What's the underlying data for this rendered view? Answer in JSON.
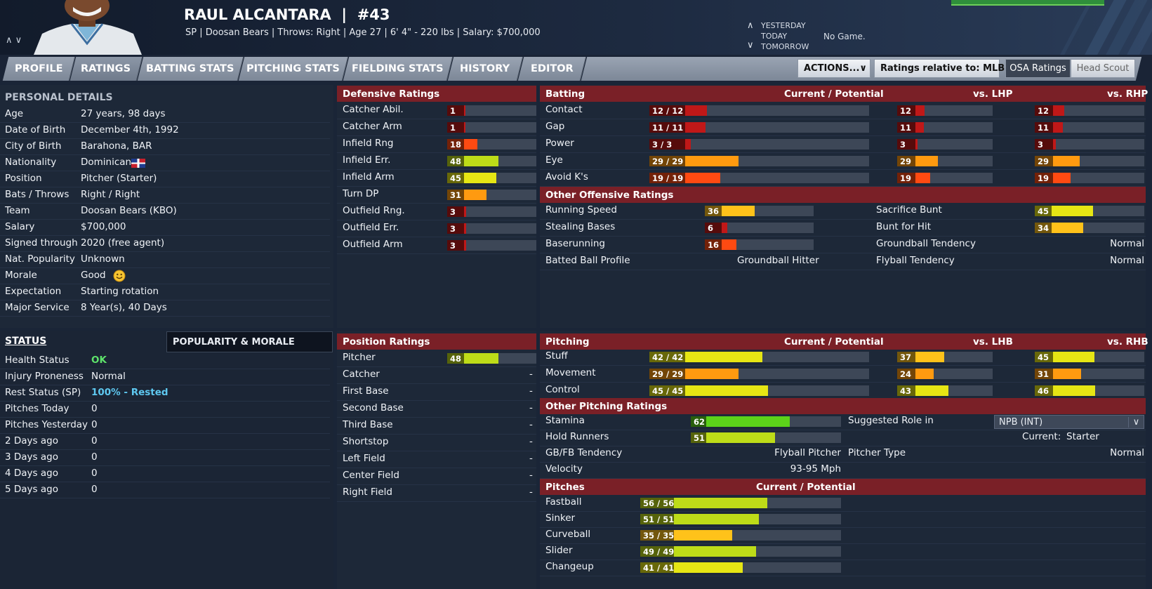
{
  "player": {
    "name": "RAUL ALCANTARA",
    "number": "#43",
    "info": "SP | Doosan Bears  |  Throws: Right  |  Age 27  |  6' 4\" - 220 lbs  |  Salary: $700,000"
  },
  "schedule": {
    "yesterday": "YESTERDAY",
    "today": "TODAY",
    "tomorrow": "TOMORROW",
    "game": "No Game."
  },
  "tabs": [
    "PROFILE",
    "RATINGS",
    "BATTING STATS",
    "PITCHING STATS",
    "FIELDING STATS",
    "HISTORY",
    "EDITOR"
  ],
  "toolbar": {
    "actions": "ACTIONS...",
    "relative": "Ratings relative to: MLB",
    "osa": "OSA Ratings",
    "scout": "Head Scout"
  },
  "personal": {
    "title": "PERSONAL DETAILS",
    "rows": [
      {
        "label": "Age",
        "value": "27 years, 98 days"
      },
      {
        "label": "Date of Birth",
        "value": "December 4th, 1992"
      },
      {
        "label": "City of Birth",
        "value": "Barahona, BAR"
      },
      {
        "label": "Nationality",
        "value": "Dominican"
      },
      {
        "label": "Position",
        "value": "Pitcher (Starter)"
      },
      {
        "label": "Bats / Throws",
        "value": "Right / Right"
      },
      {
        "label": "Team",
        "value": "Doosan Bears (KBO)"
      },
      {
        "label": "Salary",
        "value": "$700,000"
      },
      {
        "label": "Signed through",
        "value": "2020 (free agent)"
      },
      {
        "label": "Nat. Popularity",
        "value": "Unknown"
      },
      {
        "label": "Morale",
        "value": "Good"
      },
      {
        "label": "Expectation",
        "value": "Starting rotation"
      },
      {
        "label": "Major Service",
        "value": "8 Year(s), 40 Days"
      }
    ]
  },
  "status": {
    "title": "STATUS",
    "popularity_tab": "POPULARITY & MORALE",
    "rows": [
      {
        "label": "Health Status",
        "value": "OK",
        "color": "#5ee36b"
      },
      {
        "label": "Injury Proneness",
        "value": "Normal",
        "color": "#f0f3f7"
      },
      {
        "label": "Rest Status (SP)",
        "value": "100% - Rested",
        "color": "#5ec8f0"
      },
      {
        "label": "Pitches Today",
        "value": "0",
        "color": "#f0f3f7"
      },
      {
        "label": "Pitches Yesterday",
        "value": "0",
        "color": "#f0f3f7"
      },
      {
        "label": "2 Days ago",
        "value": "0",
        "color": "#f0f3f7"
      },
      {
        "label": "3 Days ago",
        "value": "0",
        "color": "#f0f3f7"
      },
      {
        "label": "4 Days ago",
        "value": "0",
        "color": "#f0f3f7"
      },
      {
        "label": "5 Days ago",
        "value": "0",
        "color": "#f0f3f7"
      }
    ]
  },
  "defensive": {
    "title": "Defensive Ratings",
    "rows": [
      {
        "label": "Catcher Abil.",
        "value": 1
      },
      {
        "label": "Catcher Arm",
        "value": 1
      },
      {
        "label": "Infield Rng",
        "value": 18
      },
      {
        "label": "Infield Err.",
        "value": 48
      },
      {
        "label": "Infield Arm",
        "value": 45
      },
      {
        "label": "Turn DP",
        "value": 31
      },
      {
        "label": "Outfield Rng.",
        "value": 3
      },
      {
        "label": "Outfield Err.",
        "value": 3
      },
      {
        "label": "Outfield Arm",
        "value": 3
      }
    ]
  },
  "position_ratings": {
    "title": "Position Ratings",
    "rows": [
      {
        "label": "Pitcher",
        "value": 48
      },
      {
        "label": "Catcher",
        "value": "-"
      },
      {
        "label": "First Base",
        "value": "-"
      },
      {
        "label": "Second Base",
        "value": "-"
      },
      {
        "label": "Third Base",
        "value": "-"
      },
      {
        "label": "Shortstop",
        "value": "-"
      },
      {
        "label": "Left Field",
        "value": "-"
      },
      {
        "label": "Center Field",
        "value": "-"
      },
      {
        "label": "Right Field",
        "value": "-"
      }
    ]
  },
  "batting": {
    "title": "Batting",
    "col_current": "Current / Potential",
    "col_lhp": "vs. LHP",
    "col_rhp": "vs. RHP",
    "rows": [
      {
        "label": "Contact",
        "current": "12 / 12",
        "cv": 12,
        "lhp": 12,
        "rhp": 12
      },
      {
        "label": "Gap",
        "current": "11 / 11",
        "cv": 11,
        "lhp": 11,
        "rhp": 11
      },
      {
        "label": "Power",
        "current": "3 / 3",
        "cv": 3,
        "lhp": 3,
        "rhp": 3
      },
      {
        "label": "Eye",
        "current": "29 / 29",
        "cv": 29,
        "lhp": 29,
        "rhp": 29
      },
      {
        "label": "Avoid K's",
        "current": "19 / 19",
        "cv": 19,
        "lhp": 19,
        "rhp": 19
      }
    ]
  },
  "other_offensive": {
    "title": "Other Offensive Ratings",
    "left": [
      {
        "label": "Running Speed",
        "value": 36
      },
      {
        "label": "Stealing Bases",
        "value": 6
      },
      {
        "label": "Baserunning",
        "value": 16
      },
      {
        "label": "Batted Ball Profile",
        "value": "Groundball Hitter"
      }
    ],
    "right": [
      {
        "label": "Sacrifice Bunt",
        "value": 45
      },
      {
        "label": "Bunt for Hit",
        "value": 34
      },
      {
        "label": "Groundball Tendency",
        "value": "Normal"
      },
      {
        "label": "Flyball Tendency",
        "value": "Normal"
      }
    ]
  },
  "pitching": {
    "title": "Pitching",
    "col_current": "Current / Potential",
    "col_lhb": "vs. LHB",
    "col_rhb": "vs. RHB",
    "rows": [
      {
        "label": "Stuff",
        "current": "42 / 42",
        "cv": 42,
        "lhb": 37,
        "rhb": 45
      },
      {
        "label": "Movement",
        "current": "29 / 29",
        "cv": 29,
        "lhb": 24,
        "rhb": 31
      },
      {
        "label": "Control",
        "current": "45 / 45",
        "cv": 45,
        "lhb": 43,
        "rhb": 46
      }
    ]
  },
  "other_pitching": {
    "title": "Other Pitching Ratings",
    "stamina_label": "Stamina",
    "stamina": 62,
    "hold_label": "Hold Runners",
    "hold": 51,
    "gbfb_label": "GB/FB Tendency",
    "gbfb": "Flyball Pitcher",
    "velocity_label": "Velocity",
    "velocity": "93-95 Mph",
    "role_label": "Suggested Role in",
    "role_select": "NPB (INT)",
    "current_label": "Current:",
    "current_role": "Starter",
    "type_label": "Pitcher Type",
    "type": "Normal"
  },
  "pitches": {
    "title": "Pitches",
    "col_current": "Current / Potential",
    "rows": [
      {
        "label": "Fastball",
        "current": "56 / 56",
        "cv": 56
      },
      {
        "label": "Sinker",
        "current": "51 / 51",
        "cv": 51
      },
      {
        "label": "Curveball",
        "current": "35 / 35",
        "cv": 35
      },
      {
        "label": "Slider",
        "current": "49 / 49",
        "cv": 49
      },
      {
        "label": "Changeup",
        "current": "41 / 41",
        "cv": 41
      }
    ]
  },
  "rating_colors": {
    "very_low": "#c01818",
    "low": "#ff4a12",
    "below": "#ff9a10",
    "mid": "#ffc21a",
    "avg": "#e6e614",
    "good": "#bedc18",
    "high": "#5cd21a"
  }
}
